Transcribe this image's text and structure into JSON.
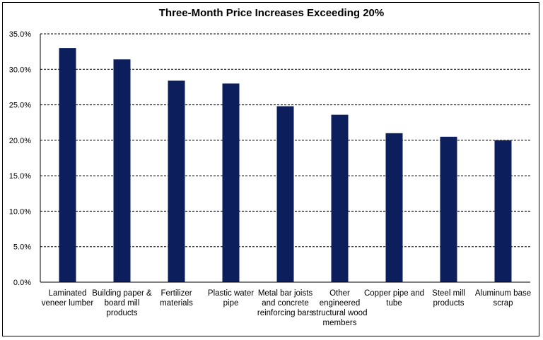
{
  "chart_data": {
    "type": "bar",
    "title": "Three-Month Price Increases Exceeding 20%",
    "xlabel": "",
    "ylabel": "",
    "ylim": [
      0,
      35
    ],
    "yticks": [
      "0.0%",
      "5.0%",
      "10.0%",
      "15.0%",
      "20.0%",
      "25.0%",
      "30.0%",
      "35.0%"
    ],
    "grid": "dashed horizontal",
    "categories": [
      "Laminated veneer lumber",
      "Building paper & board mill products",
      "Fertilizer materials",
      "Plastic water pipe",
      "Metal bar joists and concrete reinforcing bars",
      "Other engineered structural wood members",
      "Copper pipe and tube",
      "Steel mill products",
      "Aluminum base scrap"
    ],
    "values": [
      33.0,
      31.4,
      28.4,
      28.0,
      24.8,
      23.6,
      21.0,
      20.5,
      20.0
    ],
    "bar_color": "#0c1f5c"
  }
}
